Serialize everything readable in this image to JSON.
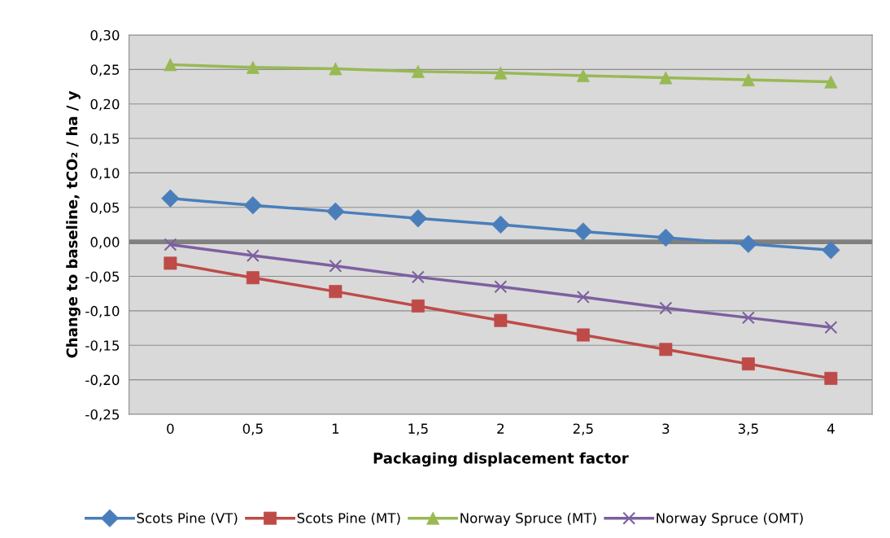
{
  "chart_data": {
    "type": "line",
    "xlabel": "Packaging displacement factor",
    "ylabel": "Change to baseline, tCO₂ / ha / y",
    "categories": [
      "0",
      "0,5",
      "1",
      "1,5",
      "2",
      "2,5",
      "3",
      "3,5",
      "4"
    ],
    "series": [
      {
        "name": "Scots Pine (VT)",
        "color": "#4a7ebb",
        "marker": "diamond",
        "values": [
          0.063,
          0.053,
          0.044,
          0.034,
          0.025,
          0.015,
          0.006,
          -0.003,
          -0.012
        ]
      },
      {
        "name": "Scots Pine (MT)",
        "color": "#be4b48",
        "marker": "square",
        "values": [
          -0.031,
          -0.052,
          -0.072,
          -0.093,
          -0.114,
          -0.135,
          -0.156,
          -0.177,
          -0.198
        ]
      },
      {
        "name": "Norway Spruce (MT)",
        "color": "#98b954",
        "marker": "triangle",
        "values": [
          0.257,
          0.253,
          0.251,
          0.247,
          0.245,
          0.241,
          0.238,
          0.235,
          0.232
        ]
      },
      {
        "name": "Norway Spruce (OMT)",
        "color": "#7d60a0",
        "marker": "cross",
        "values": [
          -0.004,
          -0.02,
          -0.035,
          -0.051,
          -0.065,
          -0.08,
          -0.096,
          -0.11,
          -0.124
        ]
      }
    ],
    "ylim": [
      -0.25,
      0.3
    ],
    "yticks": [
      {
        "value": -0.25,
        "label": "-0,25"
      },
      {
        "value": -0.2,
        "label": "-0,20"
      },
      {
        "value": -0.15,
        "label": "-0,15"
      },
      {
        "value": -0.1,
        "label": "-0,10"
      },
      {
        "value": -0.05,
        "label": "-0,05"
      },
      {
        "value": 0,
        "label": "0,00"
      },
      {
        "value": 0.05,
        "label": "0,05"
      },
      {
        "value": 0.1,
        "label": "0,10"
      },
      {
        "value": 0.15,
        "label": "0,15"
      },
      {
        "value": 0.2,
        "label": "0,20"
      },
      {
        "value": 0.25,
        "label": "0,25"
      },
      {
        "value": 0.3,
        "label": "0,30"
      }
    ],
    "ref_lines": [
      {
        "axis": "y",
        "value": 0,
        "color": "#808080"
      }
    ],
    "grid": "y",
    "legend": "bottom",
    "line_style": "solid"
  }
}
